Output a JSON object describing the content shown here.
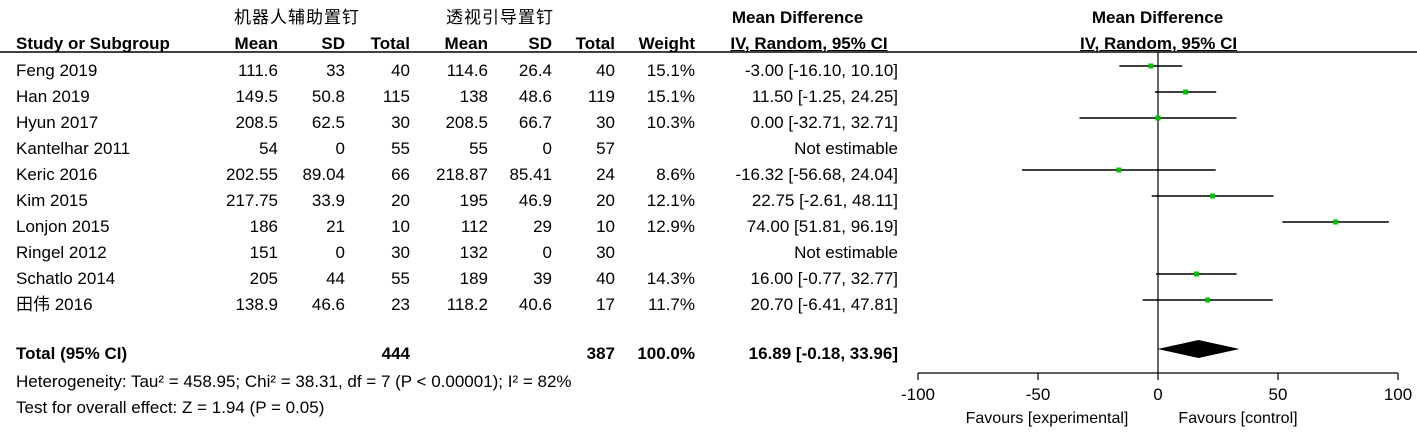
{
  "header": {
    "group_experimental": "机器人辅助置钉",
    "group_control": "透视引导置钉",
    "md_title": "Mean Difference",
    "md_subtitle": "IV, Random, 95% CI",
    "plot_title": "Mean Difference",
    "plot_subtitle": "IV, Random, 95% CI",
    "col_study": "Study or Subgroup",
    "col_mean": "Mean",
    "col_sd": "SD",
    "col_total": "Total",
    "col_mean2": "Mean",
    "col_sd2": "SD",
    "col_total2": "Total",
    "col_weight": "Weight"
  },
  "rows": [
    {
      "study": "Feng 2019",
      "m1": "111.6",
      "sd1": "33",
      "n1": "40",
      "m2": "114.6",
      "sd2": "26.4",
      "n2": "40",
      "weight": "15.1%",
      "ci": "-3.00 [-16.10, 10.10]"
    },
    {
      "study": "Han 2019",
      "m1": "149.5",
      "sd1": "50.8",
      "n1": "115",
      "m2": "138",
      "sd2": "48.6",
      "n2": "119",
      "weight": "15.1%",
      "ci": "11.50 [-1.25, 24.25]"
    },
    {
      "study": "Hyun 2017",
      "m1": "208.5",
      "sd1": "62.5",
      "n1": "30",
      "m2": "208.5",
      "sd2": "66.7",
      "n2": "30",
      "weight": "10.3%",
      "ci": "0.00 [-32.71, 32.71]"
    },
    {
      "study": "Kantelhar 2011",
      "m1": "54",
      "sd1": "0",
      "n1": "55",
      "m2": "55",
      "sd2": "0",
      "n2": "57",
      "weight": "",
      "ci": "Not estimable"
    },
    {
      "study": "Keric 2016",
      "m1": "202.55",
      "sd1": "89.04",
      "n1": "66",
      "m2": "218.87",
      "sd2": "85.41",
      "n2": "24",
      "weight": "8.6%",
      "ci": "-16.32 [-56.68, 24.04]"
    },
    {
      "study": "Kim 2015",
      "m1": "217.75",
      "sd1": "33.9",
      "n1": "20",
      "m2": "195",
      "sd2": "46.9",
      "n2": "20",
      "weight": "12.1%",
      "ci": "22.75 [-2.61, 48.11]"
    },
    {
      "study": "Lonjon 2015",
      "m1": "186",
      "sd1": "21",
      "n1": "10",
      "m2": "112",
      "sd2": "29",
      "n2": "10",
      "weight": "12.9%",
      "ci": "74.00 [51.81, 96.19]"
    },
    {
      "study": "Ringel 2012",
      "m1": "151",
      "sd1": "0",
      "n1": "30",
      "m2": "132",
      "sd2": "0",
      "n2": "30",
      "weight": "",
      "ci": "Not estimable"
    },
    {
      "study": "Schatlo 2014",
      "m1": "205",
      "sd1": "44",
      "n1": "55",
      "m2": "189",
      "sd2": "39",
      "n2": "40",
      "weight": "14.3%",
      "ci": "16.00 [-0.77, 32.77]"
    },
    {
      "study": "田伟 2016",
      "m1": "138.9",
      "sd1": "46.6",
      "n1": "23",
      "m2": "118.2",
      "sd2": "40.6",
      "n2": "17",
      "weight": "11.7%",
      "ci": "20.70 [-6.41, 47.81]"
    }
  ],
  "total": {
    "label": "Total (95% CI)",
    "n1": "444",
    "n2": "387",
    "weight": "100.0%",
    "ci": "16.89 [-0.18, 33.96]"
  },
  "footer": {
    "heterogeneity": "Heterogeneity: Tau² = 458.95; Chi² = 38.31, df = 7 (P < 0.00001); I² = 82%",
    "overall": "Test for overall effect: Z = 1.94 (P = 0.05)"
  },
  "chart_data": {
    "type": "scatter",
    "subtype": "forest plot",
    "title": "Mean Difference",
    "subtitle": "IV, Random, 95% CI",
    "xlim": [
      -100,
      100
    ],
    "xticks": [
      -100,
      -50,
      0,
      50,
      100
    ],
    "xtick_labels": [
      "-100",
      "-50",
      "0",
      "50",
      "100"
    ],
    "favours_left": "Favours [experimental]",
    "favours_right": "Favours [control]",
    "marker_color": "#00c000",
    "studies": [
      {
        "name": "Feng 2019",
        "md": -3.0,
        "lo": -16.1,
        "hi": 10.1,
        "weight": 15.1
      },
      {
        "name": "Han 2019",
        "md": 11.5,
        "lo": -1.25,
        "hi": 24.25,
        "weight": 15.1
      },
      {
        "name": "Hyun 2017",
        "md": 0.0,
        "lo": -32.71,
        "hi": 32.71,
        "weight": 10.3
      },
      {
        "name": "Kantelhar 2011",
        "md": null,
        "lo": null,
        "hi": null,
        "weight": null
      },
      {
        "name": "Keric 2016",
        "md": -16.32,
        "lo": -56.68,
        "hi": 24.04,
        "weight": 8.6
      },
      {
        "name": "Kim 2015",
        "md": 22.75,
        "lo": -2.61,
        "hi": 48.11,
        "weight": 12.1
      },
      {
        "name": "Lonjon 2015",
        "md": 74.0,
        "lo": 51.81,
        "hi": 96.19,
        "weight": 12.9
      },
      {
        "name": "Ringel 2012",
        "md": null,
        "lo": null,
        "hi": null,
        "weight": null
      },
      {
        "name": "Schatlo 2014",
        "md": 16.0,
        "lo": -0.77,
        "hi": 32.77,
        "weight": 14.3
      },
      {
        "name": "田伟 2016",
        "md": 20.7,
        "lo": -6.41,
        "hi": 47.81,
        "weight": 11.7
      }
    ],
    "pooled": {
      "md": 16.89,
      "lo": -0.18,
      "hi": 33.96
    }
  }
}
